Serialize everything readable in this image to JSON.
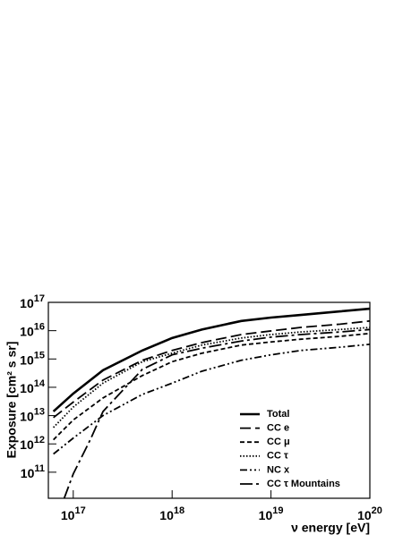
{
  "chart_data": {
    "type": "line",
    "xlabel": "ν energy [eV]",
    "ylabel": "Exposure [cm² s sr]",
    "log_x": true,
    "log_y": true,
    "xlim": [
      5.6e+16,
      1e+20
    ],
    "ylim": [
      12000000000.0,
      1e+17
    ],
    "xticks": [
      {
        "value": 1e+17,
        "label": "10^17"
      },
      {
        "value": 1e+18,
        "label": "10^18"
      },
      {
        "value": 1e+19,
        "label": "10^19"
      },
      {
        "value": 1e+20,
        "label": "10^20"
      }
    ],
    "yticks": [
      {
        "value": 100000000000.0,
        "label": "10^11"
      },
      {
        "value": 1000000000000.0,
        "label": "10^12"
      },
      {
        "value": 10000000000000.0,
        "label": "10^13"
      },
      {
        "value": 100000000000000.0,
        "label": "10^14"
      },
      {
        "value": 1000000000000000.0,
        "label": "10^15"
      },
      {
        "value": 1e+16,
        "label": "10^16"
      },
      {
        "value": 1e+17,
        "label": "10^17"
      }
    ],
    "legend": "lower right",
    "series": [
      {
        "name": "Total",
        "color": "#000000",
        "width": 2.6,
        "dash": "none",
        "x": [
          6.3e+16,
          1e+17,
          2e+17,
          5e+17,
          1e+18,
          2e+18,
          5e+18,
          1e+19,
          2e+19,
          5e+19,
          1e+20
        ],
        "values": [
          14000000000000.0,
          60000000000000.0,
          400000000000000.0,
          2000000000000000.0,
          5500000000000000.0,
          1.1e+16,
          2.2e+16,
          2.9e+16,
          3.6e+16,
          4.8e+16,
          6e+16
        ]
      },
      {
        "name": "CC e",
        "color": "#000000",
        "width": 1.8,
        "dash": "12,5",
        "x": [
          6.3e+16,
          1e+17,
          2e+17,
          5e+17,
          1e+18,
          2e+18,
          5e+18,
          1e+19,
          2e+19,
          5e+19,
          1e+20
        ],
        "values": [
          8500000000000.0,
          30000000000000.0,
          180000000000000.0,
          900000000000000.0,
          2000000000000000.0,
          3800000000000000.0,
          7300000000000000.0,
          9800000000000000.0,
          1.3e+16,
          1.7e+16,
          2.2e+16
        ]
      },
      {
        "name": "CC μ",
        "color": "#000000",
        "width": 1.8,
        "dash": "5,3",
        "x": [
          6.3e+16,
          1e+17,
          2e+17,
          5e+17,
          1e+18,
          2e+18,
          5e+18,
          1e+19,
          2e+19,
          5e+19,
          1e+20
        ],
        "values": [
          1400000000000.0,
          7000000000000.0,
          42000000000000.0,
          260000000000000.0,
          800000000000000.0,
          1600000000000000.0,
          3100000000000000.0,
          4000000000000000.0,
          5000000000000000.0,
          6300000000000000.0,
          8000000000000000.0
        ]
      },
      {
        "name": "CC τ",
        "color": "#000000",
        "width": 1.8,
        "dash": "1.5,2",
        "x": [
          6.3e+16,
          1e+17,
          2e+17,
          5e+17,
          1e+18,
          2e+18,
          5e+18,
          1e+19,
          2e+19,
          5e+19,
          1e+20
        ],
        "values": [
          3800000000000.0,
          20000000000000.0,
          140000000000000.0,
          800000000000000.0,
          1600000000000000.0,
          3100000000000000.0,
          5500000000000000.0,
          7300000000000000.0,
          9000000000000000.0,
          1.1e+16,
          1.3e+16
        ]
      },
      {
        "name": "NC x",
        "color": "#000000",
        "width": 1.8,
        "dash": "8,3,2,3,2,3",
        "x": [
          6.3e+16,
          1e+17,
          2e+17,
          5e+17,
          1e+18,
          2e+18,
          5e+18,
          1e+19,
          2e+19,
          5e+19,
          1e+20
        ],
        "values": [
          440000000000.0,
          1600000000000.0,
          10000000000000.0,
          56000000000000.0,
          140000000000000.0,
          370000000000000.0,
          900000000000000.0,
          1400000000000000.0,
          2000000000000000.0,
          2600000000000000.0,
          3300000000000000.0
        ]
      },
      {
        "name": "CC τ Mountains",
        "color": "#000000",
        "width": 1.8,
        "dash": "14,4,3,4",
        "x": [
          8.1e+16,
          1e+17,
          1.5e+17,
          2e+17,
          5e+17,
          1e+18,
          2e+18,
          5e+18,
          1e+19,
          2e+19,
          5e+19,
          1e+20
        ],
        "values": [
          12000000000.0,
          87000000000.0,
          1500000000000.0,
          14000000000000.0,
          430000000000000.0,
          1400000000000000.0,
          2400000000000000.0,
          4300000000000000.0,
          5900000000000000.0,
          7300000000000000.0,
          9000000000000000.0,
          1.1e+16
        ]
      }
    ]
  }
}
